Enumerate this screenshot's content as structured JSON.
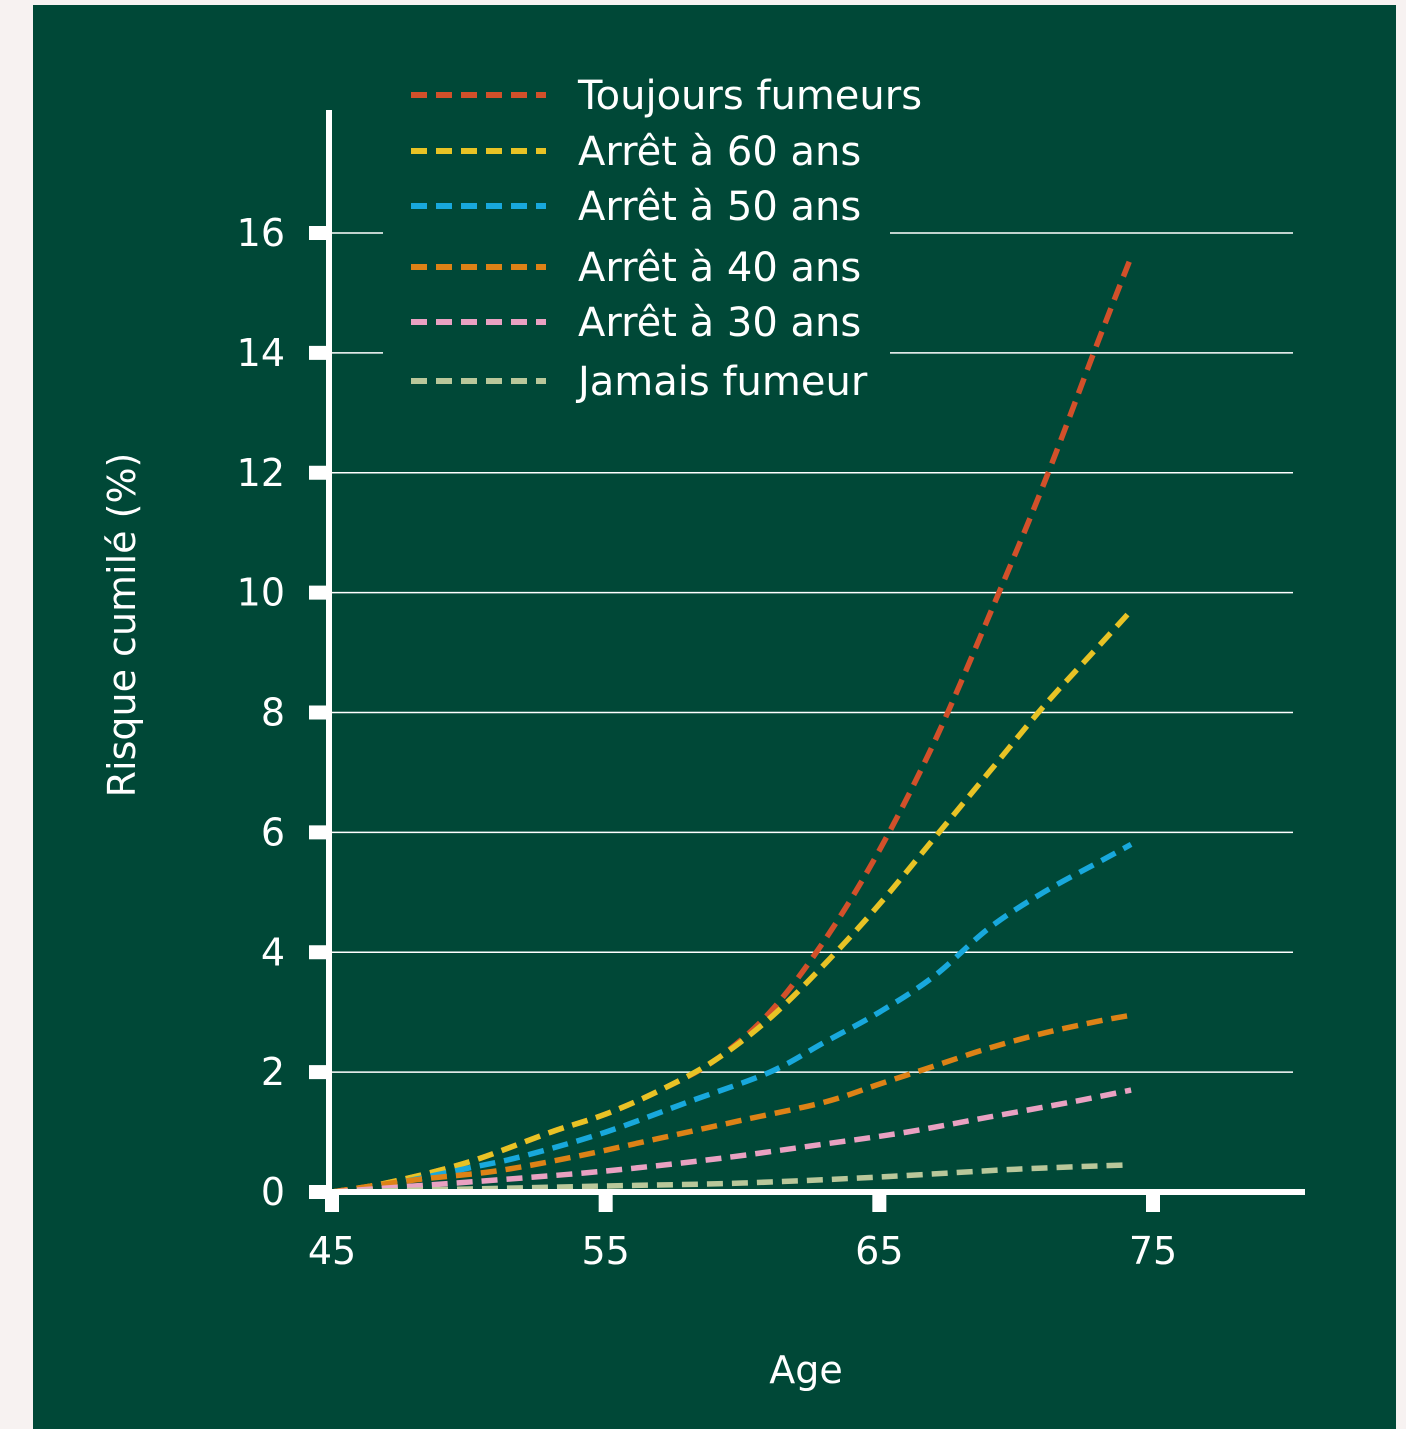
{
  "chart_data": {
    "type": "line",
    "xlabel": "Age",
    "ylabel": "Risque cumilé (%)",
    "xlim": [
      45,
      80
    ],
    "ylim": [
      0,
      18
    ],
    "xticks": [
      45,
      55,
      65,
      75
    ],
    "yticks": [
      0,
      2,
      4,
      6,
      8,
      10,
      12,
      14,
      16
    ],
    "grid": "horizontal",
    "legend_position": "top-left",
    "line_style": "dashed",
    "series": [
      {
        "name": "Toujours fumeurs",
        "color": "#d2502a",
        "x": [
          45,
          47,
          50,
          53,
          55,
          57,
          59,
          61,
          63,
          65,
          67,
          69,
          71,
          73,
          74.2
        ],
        "y": [
          0,
          0.15,
          0.5,
          1.0,
          1.3,
          1.7,
          2.2,
          3.0,
          4.2,
          5.7,
          7.5,
          9.6,
          11.8,
          14.2,
          15.6
        ]
      },
      {
        "name": "Arrêt à 60 ans",
        "color": "#e8c325",
        "x": [
          45,
          47,
          50,
          53,
          55,
          57,
          59,
          61,
          63,
          65,
          67,
          69,
          71,
          73,
          74.2
        ],
        "y": [
          0,
          0.15,
          0.5,
          1.0,
          1.3,
          1.7,
          2.2,
          2.9,
          3.8,
          4.8,
          5.9,
          7.0,
          8.1,
          9.1,
          9.7
        ]
      },
      {
        "name": "Arrêt à 50 ans",
        "color": "#18a8dc",
        "x": [
          45,
          47,
          50,
          52,
          55,
          58,
          61,
          63,
          65,
          67,
          69,
          71,
          73,
          74.2
        ],
        "y": [
          0,
          0.12,
          0.4,
          0.6,
          1.0,
          1.5,
          2.0,
          2.5,
          3.0,
          3.6,
          4.4,
          5.0,
          5.5,
          5.8
        ]
      },
      {
        "name": "Arrêt à 40 ans",
        "color": "#dd8216",
        "x": [
          45,
          48,
          51,
          54,
          57,
          60,
          63,
          65,
          67,
          69,
          71,
          73,
          74.2
        ],
        "y": [
          0,
          0.2,
          0.35,
          0.6,
          0.9,
          1.2,
          1.5,
          1.8,
          2.1,
          2.4,
          2.65,
          2.85,
          2.95
        ]
      },
      {
        "name": "Arrêt à 30 ans",
        "color": "#e9a1c2",
        "x": [
          45,
          48,
          51,
          55,
          59,
          63,
          66,
          69,
          72,
          74.2
        ],
        "y": [
          0,
          0.1,
          0.2,
          0.35,
          0.55,
          0.8,
          1.0,
          1.25,
          1.5,
          1.7
        ]
      },
      {
        "name": "Jamais fumeur",
        "color": "#b9c79a",
        "x": [
          45,
          50,
          55,
          60,
          65,
          70,
          74
        ],
        "y": [
          0,
          0.05,
          0.1,
          0.15,
          0.25,
          0.38,
          0.45
        ]
      }
    ]
  }
}
